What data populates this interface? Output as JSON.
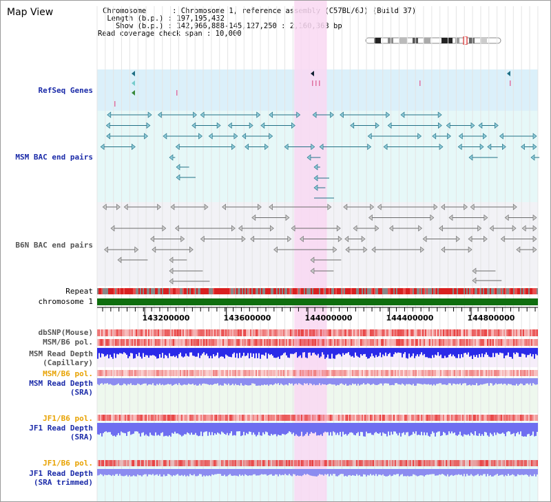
{
  "map_view": {
    "title": "Map View"
  },
  "header": {
    "chromosome_line": "Chromosome      : Chromosome 1, reference assembly (C57BL/6J) (Build 37)",
    "length_line": " Length (b.p.) : 197,195,432",
    "show_line": "   Show (b.p.) : 142,966,888-145,127,250 : 2,160,363 bp",
    "coverage_line": "Read coverage check span : 10,000"
  },
  "tracks": {
    "refseq_genes": "RefSeq Genes",
    "msm_bac": "MSM BAC end pairs",
    "b6n_bac": "B6N BAC end pairs",
    "repeat": "Repeat",
    "chromosome": "chromosome 1",
    "dbsnp": "dbSNP(Mouse)",
    "msm_b6_pol": "MSM/B6 pol.",
    "msm_read_depth_cap_1": "MSM Read Depth",
    "msm_read_depth_cap_2": "(Capillary)",
    "msm_b6_pol_sra": "MSM/B6 pol.",
    "msm_read_depth_sra_1": "MSM Read Depth",
    "msm_read_depth_sra_2": "(SRA)",
    "jf1_b6_pol": "JF1/B6 pol.",
    "jf1_read_depth_sra_1": "JF1 Read Depth",
    "jf1_read_depth_sra_2": "(SRA)",
    "jf1_b6_pol_trim": "JF1/B6 pol.",
    "jf1_read_depth_trim_1": "JF1 Read Depth",
    "jf1_read_depth_trim_2": "(SRA trimmed)"
  },
  "axis": {
    "ticks": [
      "143200000",
      "143600000",
      "144000000",
      "144400000",
      "144800000"
    ],
    "tick_values": [
      143200000,
      143600000,
      144000000,
      144400000,
      144800000
    ],
    "range_start": 142966888,
    "range_end": 145127250
  },
  "highlight": {
    "start": 143933000,
    "end": 144093000,
    "color": "#f9d8f2"
  },
  "colors": {
    "refseq_bg": "#dbf0fa",
    "msm_bac_bg": "#e6f8f8",
    "b6n_bac_bg": "#f2f2f6",
    "msm_bac_stroke": "#1f6f84",
    "b6n_bac_stroke": "#6a6a6a",
    "chromosome_bar": "#0f6e0f",
    "snp_red": "#e84040",
    "depth_blue": "#2a2ae8",
    "depth_light_blue": "#8c8cf0",
    "label_blue": "#1a2aa8",
    "label_orange": "#e8a200"
  },
  "icons": {
    "ideogram": "chromosome-ideogram-icon",
    "bac_end": "triangle-arrow-icon"
  }
}
